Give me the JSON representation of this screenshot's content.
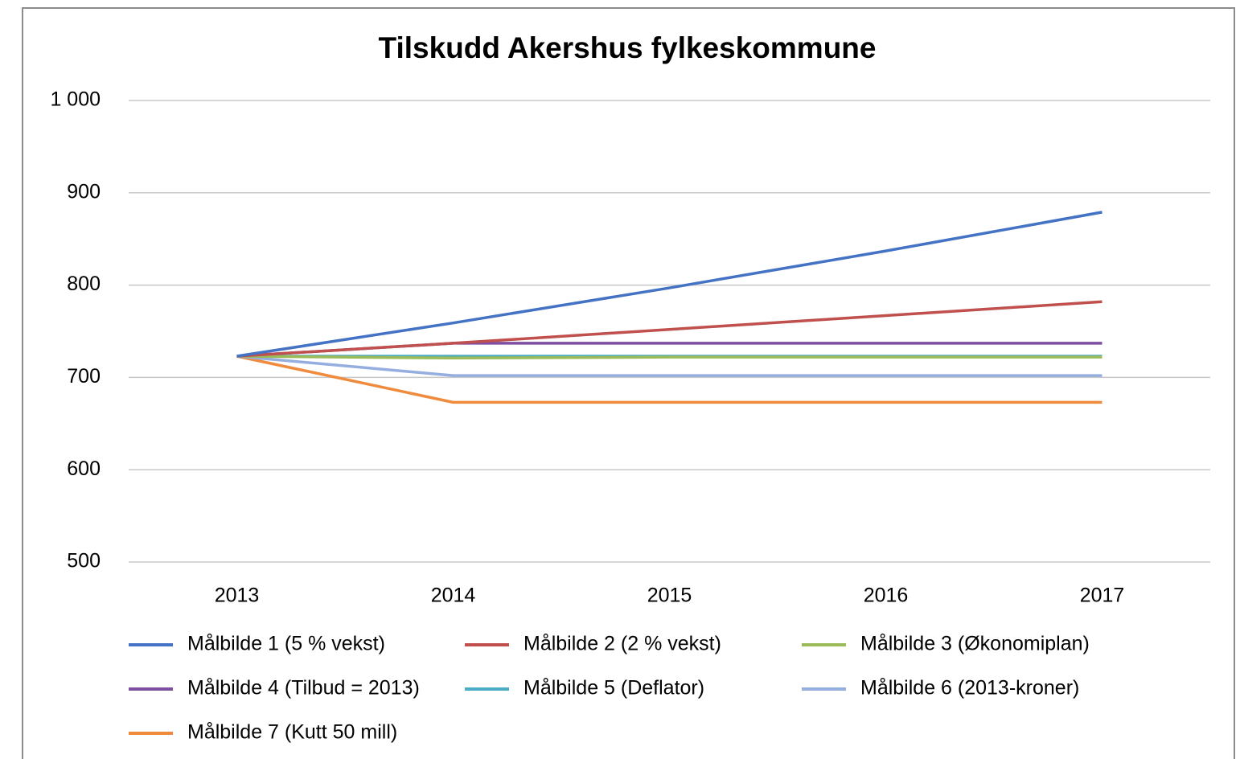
{
  "chart_data": {
    "type": "line",
    "title": "Tilskudd Akershus fylkeskommune",
    "categories": [
      "2013",
      "2014",
      "2015",
      "2016",
      "2017"
    ],
    "series": [
      {
        "name": "Målbilde 1 (5 % vekst)",
        "color": "#4472c4",
        "values": [
          723,
          759,
          797,
          837,
          879
        ]
      },
      {
        "name": "Målbilde 2 (2 % vekst)",
        "color": "#c0504d",
        "values": [
          723,
          737,
          752,
          767,
          782
        ]
      },
      {
        "name": "Målbilde 3 (Økonomiplan)",
        "color": "#9bbb59",
        "values": [
          723,
          721,
          722,
          722,
          722
        ]
      },
      {
        "name": "Målbilde 4 (Tilbud = 2013)",
        "color": "#7e4ea0",
        "values": [
          723,
          737,
          737,
          737,
          737
        ]
      },
      {
        "name": "Målbilde 5 (Deflator)",
        "color": "#4bacc6",
        "values": [
          723,
          723,
          723,
          723,
          723
        ]
      },
      {
        "name": "Målbilde 6 (2013-kroner)",
        "color": "#95aee0",
        "values": [
          723,
          702,
          702,
          702,
          702
        ]
      },
      {
        "name": "Målbilde 7 (Kutt 50 mill)",
        "color": "#f08a3c",
        "values": [
          723,
          673,
          673,
          673,
          673
        ]
      }
    ],
    "ylim": [
      500,
      1000
    ],
    "yticks": [
      500,
      600,
      700,
      800,
      900,
      {
        "value": 1000,
        "label": "1 000"
      }
    ],
    "grid": true
  }
}
